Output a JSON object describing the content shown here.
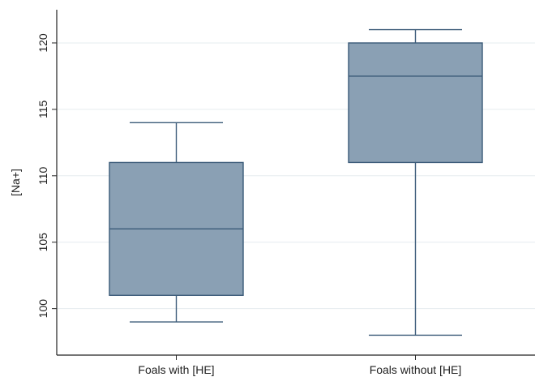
{
  "chart_data": {
    "type": "box",
    "title": "",
    "xlabel": "",
    "ylabel": "[Na+]",
    "ylim": [
      96.5,
      122.5
    ],
    "yticks": [
      100,
      105,
      110,
      115,
      120
    ],
    "grid": true,
    "legend": "none",
    "categories": [
      "Foals with [HE]",
      "Foals without [HE]"
    ],
    "boxes": [
      {
        "category": "Foals with [HE]",
        "whisker_low": 99,
        "q1": 101,
        "median": 106,
        "q3": 111,
        "whisker_high": 114
      },
      {
        "category": "Foals without [HE]",
        "whisker_low": 98,
        "q1": 111,
        "median": 117.5,
        "q3": 120,
        "whisker_high": 121
      }
    ],
    "colors": {
      "box_fill": "#8aa0b4",
      "box_stroke": "#3a5a78",
      "whisker": "#3a5a78",
      "grid": "#e6ecef",
      "axis": "#222222"
    }
  }
}
